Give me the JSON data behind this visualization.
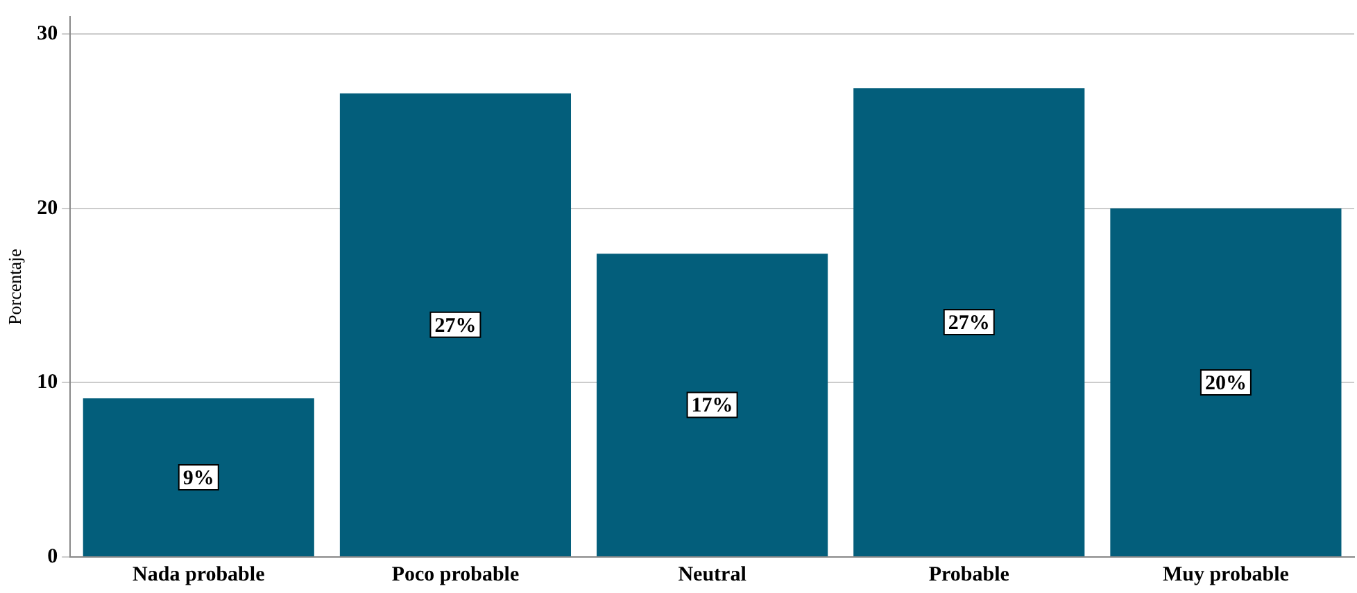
{
  "chart_data": {
    "type": "bar",
    "ylabel": "Porcentaje",
    "categories": [
      "Nada probable",
      "Poco probable",
      "Neutral",
      "Probable",
      "Muy probable"
    ],
    "values": [
      9.1,
      26.6,
      17.4,
      26.9,
      20.0
    ],
    "value_labels": [
      "9%",
      "27%",
      "17%",
      "27%",
      "20%"
    ],
    "color": "#035e7b",
    "ylim": [
      0,
      31
    ],
    "yticks": [
      0,
      10,
      20,
      30
    ],
    "grid": "y",
    "legend": false
  }
}
